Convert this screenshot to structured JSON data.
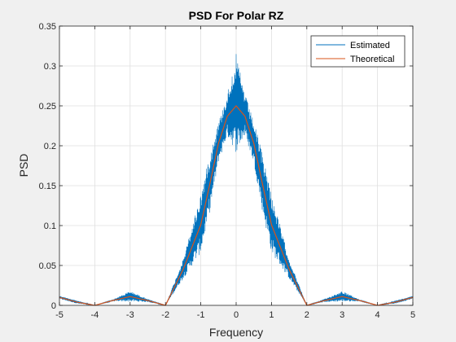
{
  "chart_data": {
    "type": "line",
    "title": "PSD For Polar RZ",
    "xlabel": "Frequency",
    "ylabel": "PSD",
    "xlim": [
      -5,
      5
    ],
    "ylim": [
      0,
      0.35
    ],
    "xticks": [
      "-5",
      "-4",
      "-3",
      "-2",
      "-1",
      "0",
      "1",
      "2",
      "3",
      "4",
      "5"
    ],
    "yticks": [
      "0",
      "0.05",
      "0.1",
      "0.15",
      "0.2",
      "0.25",
      "0.3",
      "0.35"
    ],
    "grid": true,
    "legend_position": "top-right",
    "series": [
      {
        "name": "Estimated",
        "color": "#0072bd",
        "note_style": "noisy",
        "x": [
          -5,
          -4.5,
          -4,
          -3.5,
          -3,
          -2.5,
          -2,
          -1.5,
          -1,
          -0.75,
          -0.5,
          -0.25,
          0,
          0.25,
          0.5,
          0.75,
          1,
          1.5,
          2,
          2.5,
          3,
          3.5,
          4,
          4.5,
          5
        ],
        "y": [
          0.012,
          0.006,
          0.0,
          0.007,
          0.018,
          0.008,
          0.0,
          0.058,
          0.14,
          0.19,
          0.23,
          0.265,
          0.315,
          0.265,
          0.23,
          0.19,
          0.14,
          0.058,
          0.0,
          0.008,
          0.018,
          0.007,
          0.0,
          0.006,
          0.012
        ]
      },
      {
        "name": "Theoretical",
        "color": "#d95319",
        "x": [
          -5,
          -4.5,
          -4,
          -3.5,
          -3,
          -2.5,
          -2,
          -1.5,
          -1,
          -0.75,
          -0.5,
          -0.25,
          0,
          0.25,
          0.5,
          0.75,
          1,
          1.5,
          2,
          2.5,
          3,
          3.5,
          4,
          4.5,
          5
        ],
        "y": [
          0.01,
          0.004,
          0.0,
          0.006,
          0.011,
          0.006,
          0.0,
          0.045,
          0.101,
          0.151,
          0.203,
          0.237,
          0.25,
          0.237,
          0.203,
          0.151,
          0.101,
          0.045,
          0.0,
          0.006,
          0.011,
          0.006,
          0.0,
          0.004,
          0.01
        ]
      }
    ]
  }
}
